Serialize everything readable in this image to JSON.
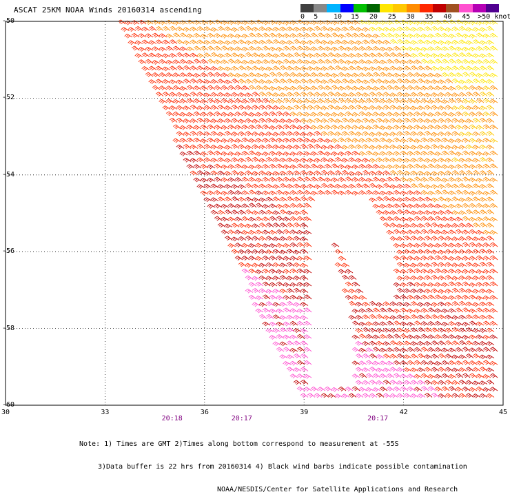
{
  "title": "ASCAT 25KM NOAA Winds 20160314 ascending",
  "legend": {
    "colors": [
      "#404040",
      "#888888",
      "#00b4ff",
      "#0000ff",
      "#00c000",
      "#006400",
      "#ffe600",
      "#ffc800",
      "#ff8c00",
      "#ff2800",
      "#c00000",
      "#a05020",
      "#ff50d0",
      "#b400b4",
      "#500090"
    ],
    "labels": [
      {
        "text": "0",
        "index": 0
      },
      {
        "text": "5",
        "index": 1
      },
      {
        "text": "10",
        "index": 2.5
      },
      {
        "text": "15",
        "index": 3.8
      },
      {
        "text": "20",
        "index": 5.2
      },
      {
        "text": "25",
        "index": 6.6
      },
      {
        "text": "30",
        "index": 8
      },
      {
        "text": "35",
        "index": 9.4
      },
      {
        "text": "40",
        "index": 10.8
      },
      {
        "text": "45",
        "index": 12.2
      },
      {
        "text": ">50 knots",
        "index": 13.4
      }
    ]
  },
  "axes": {
    "lat_labels": [
      "-50",
      "-52",
      "-54",
      "-56",
      "-58",
      "-60"
    ],
    "lat_values": [
      -50,
      -52,
      -54,
      -56,
      -58,
      -60
    ],
    "lon_labels": [
      "30",
      "33",
      "36",
      "39",
      "42",
      "45"
    ],
    "lon_values": [
      30,
      33,
      36,
      39,
      42,
      45
    ]
  },
  "time_labels": [
    {
      "text": "20:18",
      "lon": 35.0
    },
    {
      "text": "20:17",
      "lon": 37.1
    },
    {
      "text": "20:17",
      "lon": 41.2
    }
  ],
  "notes": [
    "Note: 1) Times are GMT 2)Times along bottom correspond to measurement at -55S",
    "3)Data buffer is 22 hrs from 20160314 4) Black wind barbs indicate possible contamination",
    "NOAA/NESDIS/Center for Satellite Applications and Research"
  ],
  "map_data": {
    "type": "wind-barb-map",
    "units": "knots",
    "lon_range": [
      30,
      45
    ],
    "lat_range": [
      -60,
      -50
    ],
    "grid": true,
    "color_bins_kt": [
      0,
      5,
      10,
      15,
      20,
      25,
      30,
      35,
      40,
      45,
      50
    ]
  }
}
